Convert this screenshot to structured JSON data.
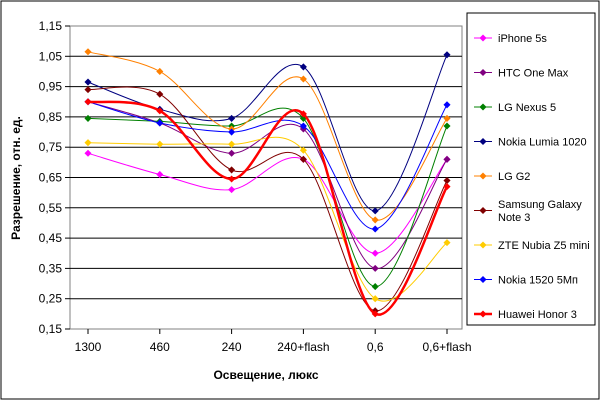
{
  "chart_data": {
    "type": "line",
    "title": "",
    "xlabel": "Освещение, люкс",
    "ylabel": "Разрешение, отн. ед.",
    "categories": [
      "1300",
      "460",
      "240",
      "240+flash",
      "0,6",
      "0,6+flash"
    ],
    "ylim": [
      0.15,
      1.15
    ],
    "yticks": [
      "0,15",
      "0,25",
      "0,35",
      "0,45",
      "0,55",
      "0,65",
      "0,75",
      "0,85",
      "0,95",
      "1,05",
      "1,15"
    ],
    "ytick_values": [
      0.15,
      0.25,
      0.35,
      0.45,
      0.55,
      0.65,
      0.75,
      0.85,
      0.95,
      1.05,
      1.15
    ],
    "grid": "horizontal",
    "legend_position": "right",
    "series": [
      {
        "name": "iPhone 5s",
        "color": "#ff00ff",
        "values": [
          0.73,
          0.66,
          0.61,
          0.71,
          0.4,
          0.71
        ]
      },
      {
        "name": "HTC One Max",
        "color": "#800080",
        "values": [
          0.9,
          0.83,
          0.73,
          0.81,
          0.35,
          0.71
        ]
      },
      {
        "name": "LG Nexus 5",
        "color": "#008000",
        "values": [
          0.845,
          0.835,
          0.82,
          0.845,
          0.29,
          0.82
        ]
      },
      {
        "name": "Nokia Lumia 1020",
        "color": "#000080",
        "values": [
          0.965,
          0.875,
          0.845,
          1.015,
          0.54,
          1.055
        ]
      },
      {
        "name": "LG G2",
        "color": "#ff8000",
        "values": [
          1.065,
          1.0,
          0.81,
          0.975,
          0.51,
          0.845
        ]
      },
      {
        "name": "Samsung Galaxy Note 3",
        "label_lines": [
          "Samsung Galaxy",
          "Note 3"
        ],
        "color": "#800000",
        "values": [
          0.94,
          0.925,
          0.675,
          0.71,
          0.21,
          0.64
        ]
      },
      {
        "name": "ZTE Nubia Z5 mini",
        "color": "#ffcc00",
        "values": [
          0.765,
          0.76,
          0.76,
          0.74,
          0.25,
          0.435
        ]
      },
      {
        "name": "Nokia 1520 5Мп",
        "color": "#0000ff",
        "values": [
          0.9,
          0.83,
          0.8,
          0.82,
          0.48,
          0.89
        ]
      },
      {
        "name": "Huawei Honor 3",
        "color": "#ff0000",
        "bold": true,
        "values": [
          0.9,
          0.87,
          0.645,
          0.86,
          0.2,
          0.62
        ]
      }
    ]
  }
}
